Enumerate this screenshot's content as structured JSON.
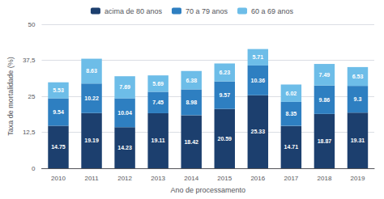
{
  "chart_data": {
    "type": "bar",
    "stacked": true,
    "data_labels": true,
    "grid": true,
    "legend": "top",
    "xlabel": "Ano de processamento",
    "ylabel": "Taxa de mortalidade (%)",
    "categories": [
      "2010",
      "2011",
      "2012",
      "2013",
      "2014",
      "2015",
      "2016",
      "2017",
      "2018",
      "2019"
    ],
    "series": [
      {
        "name": "acima de 80 anos",
        "color": "#1c3f6e",
        "values": [
          14.75,
          19.19,
          14.23,
          19.11,
          18.42,
          20.59,
          25.33,
          14.71,
          18.87,
          19.31
        ]
      },
      {
        "name": "70 a 79 anos",
        "color": "#2e7fc1",
        "values": [
          9.54,
          10.22,
          10.04,
          7.45,
          8.98,
          9.57,
          10.36,
          8.35,
          9.86,
          9.3
        ]
      },
      {
        "name": "60 a 69 anos",
        "color": "#6dbde8",
        "values": [
          5.53,
          8.63,
          7.69,
          5.69,
          6.38,
          6.23,
          5.71,
          6.02,
          7.49,
          6.53
        ]
      }
    ],
    "ylim": [
      0,
      50
    ],
    "yticks": [
      0,
      {
        "value": 12.5,
        "label": "12,5"
      },
      25,
      {
        "value": 37.5,
        "label": "37,5"
      },
      50
    ]
  }
}
